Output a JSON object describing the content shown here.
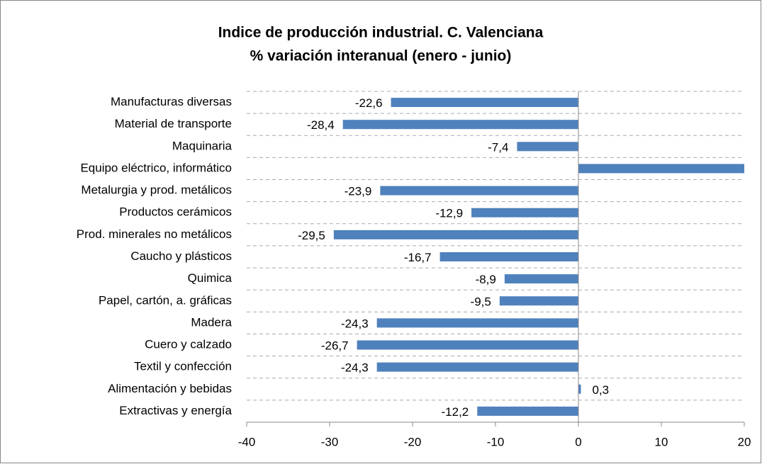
{
  "chart_data": {
    "type": "bar",
    "orientation": "horizontal",
    "title": "Indice de producción industrial. C. Valenciana",
    "subtitle": "% variación interanual (enero - junio)",
    "categories": [
      "Manufacturas diversas",
      "Material de transporte",
      "Maquinaria",
      "Equipo eléctrico, informático",
      "Metalurgia y prod. metálicos",
      "Productos cerámicos",
      "Prod. minerales no metálicos",
      "Caucho y plásticos",
      "Quimica",
      "Papel, cartón, a. gráficas",
      "Madera",
      "Cuero y calzado",
      "Textil y confección",
      "Alimentación y bebidas",
      "Extractivas y energía"
    ],
    "values": [
      -22.6,
      -28.4,
      -7.4,
      22,
      -23.9,
      -12.9,
      -29.5,
      -16.7,
      -8.9,
      -9.5,
      -24.3,
      -26.7,
      -24.3,
      0.3,
      -12.2
    ],
    "value_labels": [
      "-22,6",
      "-28,4",
      "-7,4",
      null,
      "-23,9",
      "-12,9",
      "-29,5",
      "-16,7",
      "-8,9",
      "-9,5",
      "-24,3",
      "-26,7",
      "-24,3",
      "0,3",
      "-12,2"
    ],
    "color": "#4f81bd",
    "xlim": [
      -40,
      20
    ],
    "xticks": [
      -40,
      -30,
      -20,
      -10,
      0,
      10,
      20
    ]
  }
}
